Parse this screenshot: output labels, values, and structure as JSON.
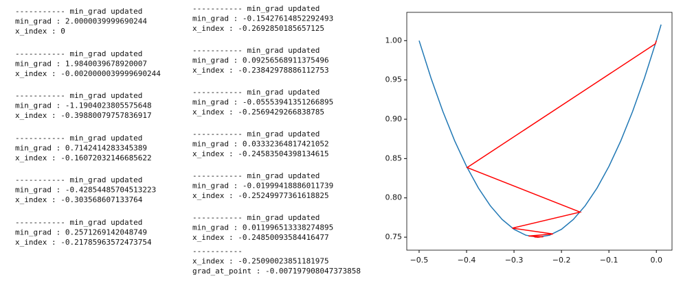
{
  "log": {
    "columns": [
      {
        "blocks": [
          [
            "----------- min_grad updated",
            "min_grad : 2.0000039999690244",
            "x_index : 0"
          ],
          [
            "----------- min_grad updated",
            "min_grad : 1.9840039678920007",
            "x_index : -0.0020000039999690244"
          ],
          [
            "----------- min_grad updated",
            "min_grad : -1.1904023805575648",
            "x_index : -0.39880079757836917"
          ],
          [
            "----------- min_grad updated",
            "min_grad : 0.7142414283345389",
            "x_index : -0.16072032146685622"
          ],
          [
            "----------- min_grad updated",
            "min_grad : -0.42854485704513223",
            "x_index : -0.303568607133764"
          ],
          [
            "----------- min_grad updated",
            "min_grad : 0.2571269142048749",
            "x_index : -0.21785963572473754"
          ]
        ]
      },
      {
        "blocks": [
          [
            "----------- min_grad updated",
            "min_grad : -0.15427614852292493",
            "x_index : -0.2692850185657125"
          ],
          [
            "----------- min_grad updated",
            "min_grad : 0.09256568911375496",
            "x_index : -0.23842978886112753"
          ],
          [
            "----------- min_grad updated",
            "min_grad : -0.05553941351266895",
            "x_index : -0.2569429266838785"
          ],
          [
            "----------- min_grad updated",
            "min_grad : 0.03332364817421052",
            "x_index : -0.24583504398134615"
          ],
          [
            "----------- min_grad updated",
            "min_grad : -0.01999418886011739",
            "x_index : -0.25249977361618825"
          ],
          [
            "----------- min_grad updated",
            "min_grad : 0.011996513338274895",
            "x_index : -0.24850093584416477"
          ],
          [
            "-----------",
            "x_index : -0.25090023851181975",
            "grad_at_point : -0.007197908047373858"
          ]
        ]
      }
    ]
  },
  "chart_data": {
    "type": "line",
    "xlim": [
      -0.526,
      0.033
    ],
    "ylim": [
      0.7335,
      1.036
    ],
    "xticks": [
      {
        "value": -0.5,
        "label": "−0.5"
      },
      {
        "value": -0.4,
        "label": "−0.4"
      },
      {
        "value": -0.3,
        "label": "−0.3"
      },
      {
        "value": -0.2,
        "label": "−0.2"
      },
      {
        "value": -0.1,
        "label": "−0.1"
      },
      {
        "value": 0,
        "label": "0.0"
      }
    ],
    "yticks": [
      {
        "value": 0.75,
        "label": "0.75"
      },
      {
        "value": 0.8,
        "label": "0.80"
      },
      {
        "value": 0.85,
        "label": "0.85"
      },
      {
        "value": 0.9,
        "label": "0.90"
      },
      {
        "value": 0.95,
        "label": "0.95"
      },
      {
        "value": 1,
        "label": "1.00"
      }
    ],
    "series": [
      {
        "color": "#1f77b4",
        "x": [
          -0.5,
          -0.475,
          -0.45,
          -0.425,
          -0.4,
          -0.375,
          -0.35,
          -0.325,
          -0.3,
          -0.275,
          -0.25,
          -0.225,
          -0.2,
          -0.175,
          -0.15,
          -0.125,
          -0.1,
          -0.075,
          -0.05,
          -0.025,
          0,
          0.01
        ],
        "values": [
          1.0,
          0.9525,
          0.91,
          0.8725,
          0.84,
          0.8125,
          0.79,
          0.7725,
          0.76,
          0.7525,
          0.75,
          0.7525,
          0.76,
          0.7725,
          0.79,
          0.8125,
          0.84,
          0.8725,
          0.91,
          0.9525,
          1.0,
          1.0204
        ]
      },
      {
        "color": "#ff0000",
        "x": [
          0,
          -0.002,
          -0.3988,
          -0.1607,
          -0.3036,
          -0.2179,
          -0.2693,
          -0.2384,
          -0.2569,
          -0.2458,
          -0.2525,
          -0.2485,
          -0.2509
        ],
        "values": [
          1.0,
          0.996,
          0.8386,
          0.7819,
          0.7615,
          0.7541,
          0.7515,
          0.7505,
          0.7502,
          0.7501,
          0.75,
          0.75,
          0.75
        ]
      }
    ]
  }
}
